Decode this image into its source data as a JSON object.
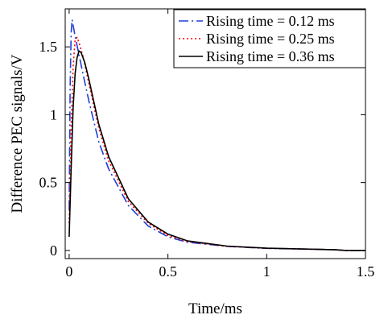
{
  "chart_data": {
    "type": "line",
    "xlabel": "Time/ms",
    "ylabel": "Difference PEC signals/V",
    "xlim": [
      -0.02,
      1.5
    ],
    "ylim": [
      -0.06,
      1.78
    ],
    "xticks": [
      0,
      0.5,
      1,
      1.5
    ],
    "xtick_labels": [
      "0",
      "0.5",
      "1",
      "1.5"
    ],
    "yticks": [
      0,
      0.5,
      1,
      1.5
    ],
    "ytick_labels": [
      "0",
      "0.5",
      "1",
      "1.5"
    ],
    "grid": false,
    "legend_position": "top-right",
    "series": [
      {
        "name": "Rising time = 0.12 ms",
        "color": "#1f3fd6",
        "dash": "long-dash-dot",
        "x": [
          0,
          0.005,
          0.01,
          0.015,
          0.02,
          0.03,
          0.05,
          0.07,
          0.1,
          0.15,
          0.2,
          0.3,
          0.4,
          0.5,
          0.6,
          0.8,
          1.0,
          1.2,
          1.35,
          1.4,
          1.5
        ],
        "y": [
          0.3,
          1.2,
          1.6,
          1.7,
          1.66,
          1.58,
          1.44,
          1.3,
          1.1,
          0.8,
          0.6,
          0.33,
          0.18,
          0.1,
          0.06,
          0.03,
          0.015,
          0.01,
          0.005,
          0.0,
          0.0
        ]
      },
      {
        "name": "Rising time = 0.25 ms",
        "color": "#ff0000",
        "dash": "dotted",
        "x": [
          0,
          0.01,
          0.02,
          0.03,
          0.04,
          0.05,
          0.07,
          0.1,
          0.15,
          0.2,
          0.3,
          0.4,
          0.5,
          0.6,
          0.8,
          1.0,
          1.2,
          1.35,
          1.4,
          1.5
        ],
        "y": [
          0.2,
          0.9,
          1.35,
          1.55,
          1.57,
          1.53,
          1.43,
          1.23,
          0.9,
          0.66,
          0.36,
          0.2,
          0.11,
          0.065,
          0.03,
          0.016,
          0.01,
          0.005,
          0.0,
          0.0
        ]
      },
      {
        "name": "Rising time = 0.36 ms",
        "color": "#000000",
        "dash": "solid",
        "x": [
          0,
          0.01,
          0.02,
          0.03,
          0.04,
          0.05,
          0.06,
          0.08,
          0.1,
          0.15,
          0.2,
          0.3,
          0.4,
          0.5,
          0.6,
          0.8,
          1.0,
          1.2,
          1.35,
          1.4,
          1.5
        ],
        "y": [
          0.1,
          0.6,
          1.05,
          1.3,
          1.42,
          1.47,
          1.46,
          1.38,
          1.26,
          0.93,
          0.69,
          0.38,
          0.21,
          0.12,
          0.07,
          0.032,
          0.017,
          0.01,
          0.005,
          0.0,
          0.0
        ]
      }
    ]
  }
}
